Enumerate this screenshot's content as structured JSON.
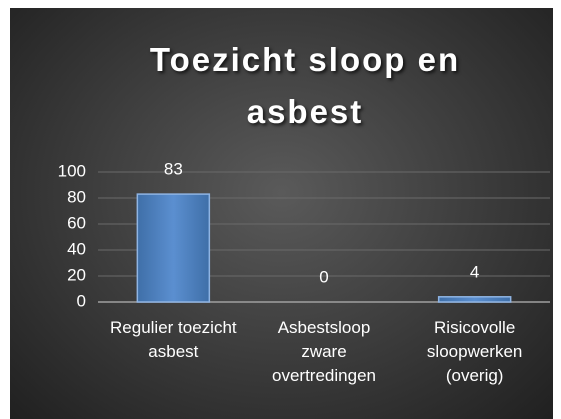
{
  "chart_data": {
    "type": "bar",
    "title": "Toezicht sloop en asbest",
    "categories": [
      "Regulier toezicht asbest",
      "Asbestsloop zware overtredingen",
      "Risicovolle sloopwerken (overig)"
    ],
    "values": [
      83,
      0,
      4
    ],
    "color": "#4f81bd",
    "ylim": [
      0,
      100
    ],
    "yticks": [
      0,
      20,
      40,
      60,
      80,
      100
    ],
    "grid": true
  }
}
